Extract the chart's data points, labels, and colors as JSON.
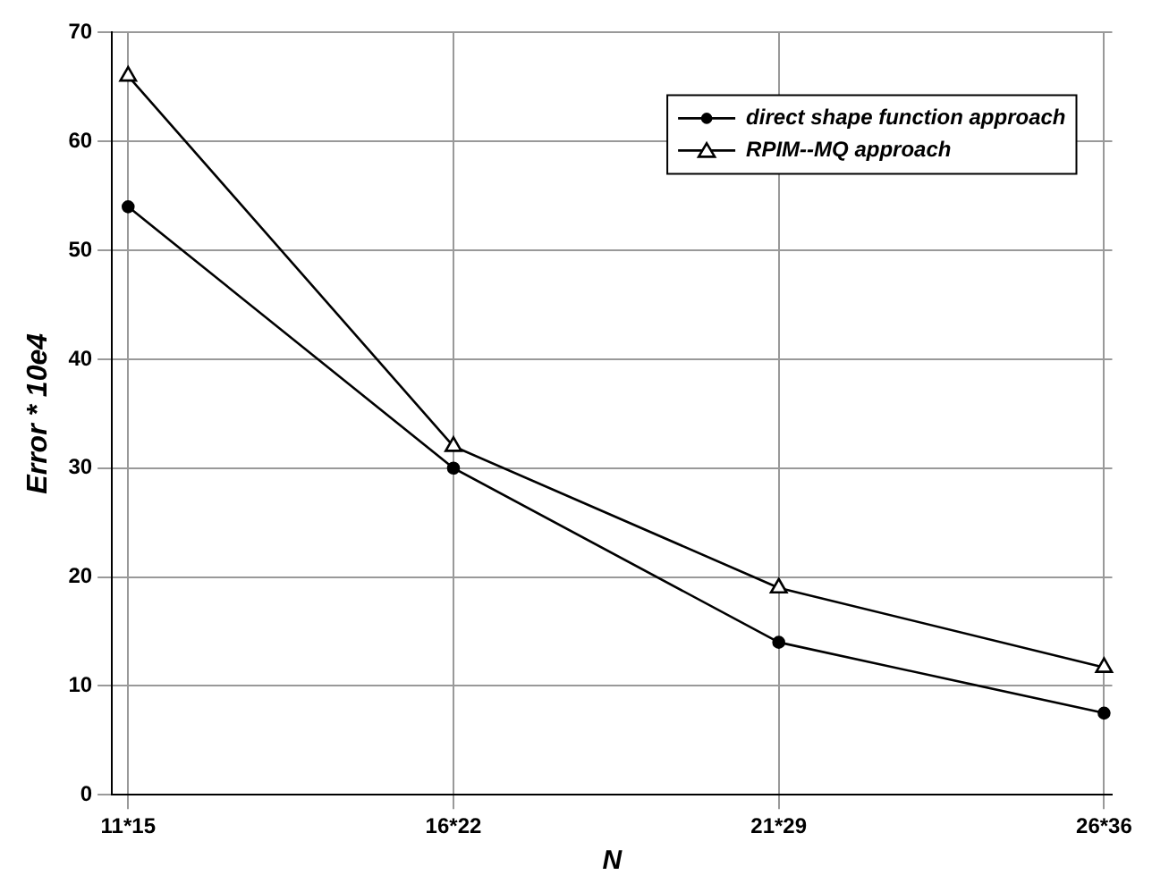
{
  "chart_data": {
    "type": "line",
    "xlabel": "N",
    "ylabel": "Error * 10e4",
    "categories": [
      "11*15",
      "16*22",
      "21*29",
      "26*36"
    ],
    "series": [
      {
        "name": "direct shape function approach",
        "color": "#000000",
        "marker": "circle",
        "values": [
          54,
          30,
          14,
          7.5
        ]
      },
      {
        "name": "RPIM--MQ approach",
        "color": "#000000",
        "marker": "triangle",
        "values": [
          66,
          32,
          19,
          11.7
        ]
      }
    ],
    "ylim": [
      0,
      70
    ],
    "yticks": [
      0,
      10,
      20,
      30,
      40,
      50,
      60,
      70
    ],
    "grid": true,
    "legend": "top right"
  }
}
